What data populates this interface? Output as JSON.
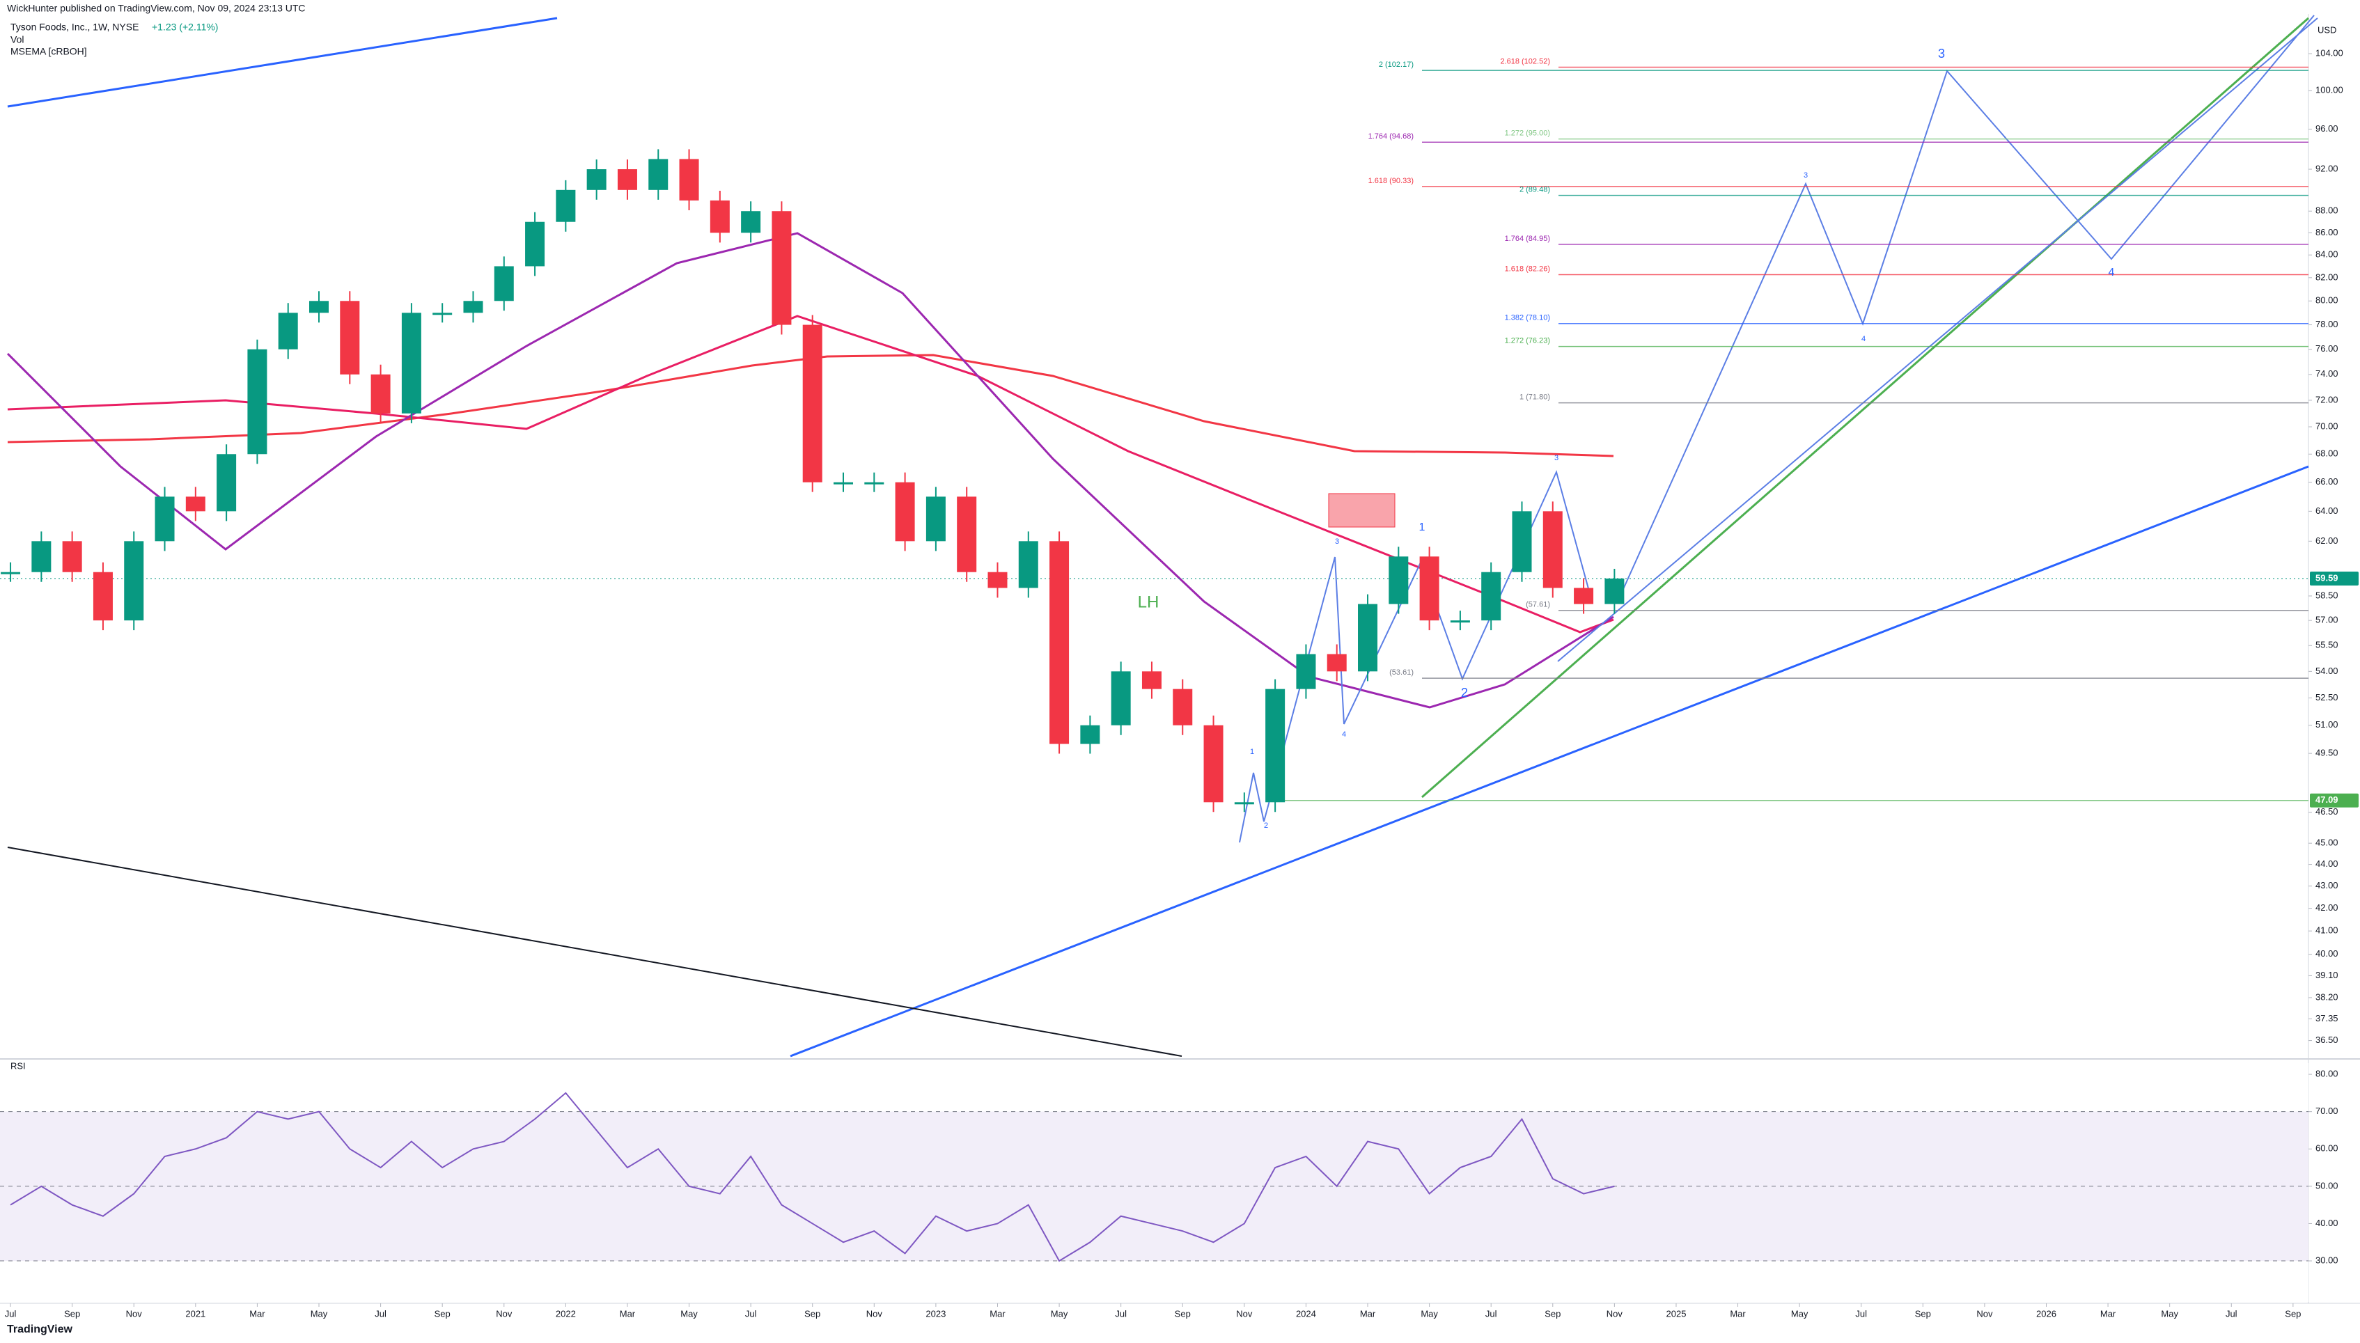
{
  "header": {
    "publisher": "WickHunter published on TradingView.com, Nov 09, 2024 23:13 UTC",
    "symbol": "Tyson Foods, Inc., 1W, NYSE",
    "change": "+1.23 (+2.11%)",
    "indicators": [
      "Vol",
      "MSEMA [cRBOH]"
    ]
  },
  "footer": "TradingView",
  "chart_data": [
    {
      "type": "candlestick",
      "y_unit": "USD",
      "log_scale": true,
      "up_color": "#089981",
      "down_color": "#f23645",
      "x": [
        0,
        1,
        2,
        3,
        4,
        5,
        6,
        7,
        8,
        9,
        10,
        11,
        12,
        13,
        14,
        15,
        16,
        17,
        18,
        19,
        20,
        21,
        22,
        23,
        24,
        25,
        26,
        27,
        28,
        29,
        30,
        31,
        32,
        33,
        34,
        35,
        36,
        37,
        38,
        39,
        40,
        41,
        42,
        43,
        44,
        45,
        46,
        47,
        48,
        49,
        50,
        51,
        52
      ],
      "values": [
        60,
        62,
        60,
        57,
        62,
        65,
        64,
        68,
        76,
        79,
        80,
        74,
        71,
        79,
        79,
        80,
        83,
        87,
        90,
        92,
        90,
        93,
        89,
        86,
        88,
        78,
        66,
        66,
        66,
        62,
        65,
        60,
        59,
        62,
        50,
        51,
        54,
        53,
        51,
        47,
        47,
        53,
        55,
        54,
        58,
        61,
        57,
        57,
        60,
        64,
        59,
        58,
        59.59
      ],
      "xlim": [
        -0.34,
        74.5
      ],
      "xticks": [
        {
          "value": 0,
          "label": "Jul"
        },
        {
          "value": 2,
          "label": "Sep"
        },
        {
          "value": 4,
          "label": "Nov"
        },
        {
          "value": 6,
          "label": "2021"
        },
        {
          "value": 8,
          "label": "Mar"
        },
        {
          "value": 10,
          "label": "May"
        },
        {
          "value": 12,
          "label": "Jul"
        },
        {
          "value": 14,
          "label": "Sep"
        },
        {
          "value": 16,
          "label": "Nov"
        },
        {
          "value": 18,
          "label": "2022"
        },
        {
          "value": 20,
          "label": "Mar"
        },
        {
          "value": 22,
          "label": "May"
        },
        {
          "value": 24,
          "label": "Jul"
        },
        {
          "value": 26,
          "label": "Sep"
        },
        {
          "value": 28,
          "label": "Nov"
        },
        {
          "value": 30,
          "label": "2023"
        },
        {
          "value": 32,
          "label": "Mar"
        },
        {
          "value": 34,
          "label": "May"
        },
        {
          "value": 36,
          "label": "Jul"
        },
        {
          "value": 38,
          "label": "Sep"
        },
        {
          "value": 40,
          "label": "Nov"
        },
        {
          "value": 42,
          "label": "2024"
        },
        {
          "value": 44,
          "label": "Mar"
        },
        {
          "value": 46,
          "label": "May"
        },
        {
          "value": 48,
          "label": "Jul"
        },
        {
          "value": 50,
          "label": "Sep"
        },
        {
          "value": 52,
          "label": "Nov"
        },
        {
          "value": 54,
          "label": "2025"
        },
        {
          "value": 56,
          "label": "Mar"
        },
        {
          "value": 58,
          "label": "May"
        },
        {
          "value": 60,
          "label": "Jul"
        },
        {
          "value": 62,
          "label": "Sep"
        },
        {
          "value": 64,
          "label": "Nov"
        },
        {
          "value": 66,
          "label": "2026"
        },
        {
          "value": 68,
          "label": "Mar"
        },
        {
          "value": 70,
          "label": "May"
        },
        {
          "value": 72,
          "label": "Jul"
        },
        {
          "value": 74,
          "label": "Sep"
        }
      ],
      "ylim": [
        35.9,
        108
      ],
      "yticks": [
        {
          "value": 104,
          "label": "104.00"
        },
        {
          "value": 100,
          "label": "100.00"
        },
        {
          "value": 96,
          "label": "96.00"
        },
        {
          "value": 92,
          "label": "92.00"
        },
        {
          "value": 88,
          "label": "88.00"
        },
        {
          "value": 86,
          "label": "86.00"
        },
        {
          "value": 84,
          "label": "84.00"
        },
        {
          "value": 82,
          "label": "82.00"
        },
        {
          "value": 80,
          "label": "80.00"
        },
        {
          "value": 78,
          "label": "78.00"
        },
        {
          "value": 76,
          "label": "76.00"
        },
        {
          "value": 74,
          "label": "74.00"
        },
        {
          "value": 72,
          "label": "72.00"
        },
        {
          "value": 70,
          "label": "70.00"
        },
        {
          "value": 68,
          "label": "68.00"
        },
        {
          "value": 66,
          "label": "66.00"
        },
        {
          "value": 64,
          "label": "64.00"
        },
        {
          "value": 62,
          "label": "62.00"
        },
        {
          "value": 58.5,
          "label": "58.50"
        },
        {
          "value": 57,
          "label": "57.00"
        },
        {
          "value": 55.5,
          "label": "55.50"
        },
        {
          "value": 54,
          "label": "54.00"
        },
        {
          "value": 52.5,
          "label": "52.50"
        },
        {
          "value": 51,
          "label": "51.00"
        },
        {
          "value": 49.5,
          "label": "49.50"
        },
        {
          "value": 46.5,
          "label": "46.50"
        },
        {
          "value": 45,
          "label": "45.00"
        },
        {
          "value": 44,
          "label": "44.00"
        },
        {
          "value": 43,
          "label": "43.00"
        },
        {
          "value": 42,
          "label": "42.00"
        },
        {
          "value": 41,
          "label": "41.00"
        },
        {
          "value": 40,
          "label": "40.00"
        },
        {
          "value": 39.1,
          "label": "39.10"
        },
        {
          "value": 38.2,
          "label": "38.20"
        },
        {
          "value": 37.35,
          "label": "37.35"
        },
        {
          "value": 36.5,
          "label": "36.50"
        }
      ],
      "levels": [
        {
          "label": "2 (102.17)",
          "value": 102.17,
          "color": "#089981"
        },
        {
          "label": "2.618 (102.52)",
          "value": 102.52,
          "color": "#f23645"
        },
        {
          "label": "1.764 (94.68)",
          "value": 94.68,
          "color": "#9c27b0"
        },
        {
          "label": "1.272 (95.00)",
          "value": 95.0,
          "color": "#81c784"
        },
        {
          "label": "1.618 (90.33)",
          "value": 90.33,
          "color": "#f23645"
        },
        {
          "label": "2 (89.48)",
          "value": 89.48,
          "color": "#089981"
        },
        {
          "label": "1.764 (84.95)",
          "value": 84.95,
          "color": "#9c27b0"
        },
        {
          "label": "1.618 (82.26)",
          "value": 82.26,
          "color": "#f23645"
        },
        {
          "label": "1.382 (78.10)",
          "value": 78.1,
          "color": "#2962ff"
        },
        {
          "label": "1.272 (76.23)",
          "value": 76.23,
          "color": "#4caf50"
        },
        {
          "label": "1 (71.80)",
          "value": 71.8,
          "color": "#787b86"
        },
        {
          "label": "(57.61)",
          "value": 57.61,
          "color": "#787b86"
        },
        {
          "label": "(53.61)",
          "value": 53.61,
          "color": "#787b86"
        }
      ],
      "price_tags": [
        {
          "label": "59.59",
          "value": 59.59,
          "color": "#089981"
        },
        {
          "label": "47.09",
          "value": 47.09,
          "color": "#4caf50"
        }
      ],
      "annotations": [
        "LH",
        "1",
        "2",
        "3",
        "4",
        "1",
        "2",
        "3",
        "3",
        "4",
        "3",
        "4"
      ]
    },
    {
      "type": "line",
      "title": "RSI",
      "color": "#7e57c2",
      "x": [
        0,
        1,
        2,
        3,
        4,
        5,
        6,
        7,
        8,
        9,
        10,
        11,
        12,
        13,
        14,
        15,
        16,
        17,
        18,
        19,
        20,
        21,
        22,
        23,
        24,
        25,
        26,
        27,
        28,
        29,
        30,
        31,
        32,
        33,
        34,
        35,
        36,
        37,
        38,
        39,
        40,
        41,
        42,
        43,
        44,
        45,
        46,
        47,
        48,
        49,
        50,
        51,
        52
      ],
      "values": [
        45,
        50,
        45,
        42,
        48,
        58,
        60,
        63,
        70,
        68,
        70,
        60,
        55,
        62,
        55,
        60,
        62,
        68,
        75,
        65,
        55,
        60,
        50,
        48,
        58,
        45,
        40,
        35,
        38,
        32,
        42,
        38,
        40,
        45,
        30,
        35,
        42,
        40,
        38,
        35,
        40,
        55,
        58,
        50,
        62,
        60,
        48,
        55,
        58,
        68,
        52,
        48,
        50
      ],
      "ylim": [
        19,
        83
      ],
      "yticks": [
        {
          "value": 80,
          "label": "80.00"
        },
        {
          "value": 70,
          "label": "70.00"
        },
        {
          "value": 60,
          "label": "60.00"
        },
        {
          "value": 50,
          "label": "50.00"
        },
        {
          "value": 40,
          "label": "40.00"
        },
        {
          "value": 30,
          "label": "30.00"
        }
      ]
    }
  ]
}
